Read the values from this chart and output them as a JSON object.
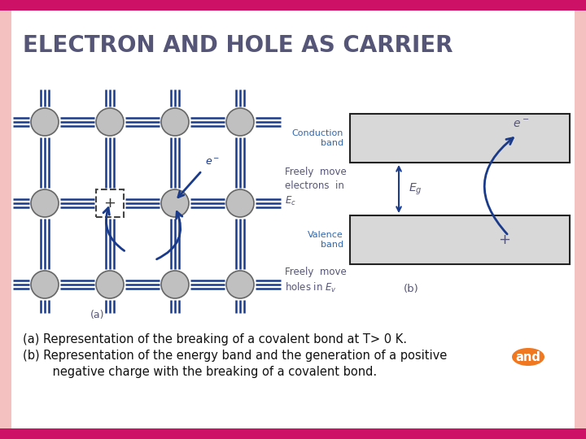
{
  "title_caps": "ELECTRON AND HOLE AS CARRIER",
  "bg_color": "#ffffff",
  "border_outer_color": "#cc1166",
  "border_inner_color": "#f5c0c0",
  "text_color": "#555577",
  "body_text_color": "#111111",
  "caption_a": "(a) Representation of the breaking of a covalent bond at T> 0 K.",
  "caption_b1": "(b) Representation of the energy band and the generation of a positive",
  "caption_b2": "and",
  "caption_b3": "    negative charge with the breaking of a covalent bond.",
  "label_a": "(a)",
  "label_b": "(b)",
  "label_conduction": "Conduction\nband",
  "label_valence": "Valence\nband",
  "band_color": "#d8d8d8",
  "band_border": "#222222",
  "arrow_color": "#1a3a8a",
  "band_label_color": "#3366aa",
  "atom_color": "#c0c0c0",
  "atom_edge": "#666666",
  "bond_color": "#1a3a8a",
  "orange_color": "#f07820",
  "font_title_size": 20,
  "font_body_size": 10.5,
  "font_label_size": 9,
  "freely_electrons": "Freely  move\nelectrons  in\nEc",
  "freely_holes": "Freely  move\nholes in Ev"
}
